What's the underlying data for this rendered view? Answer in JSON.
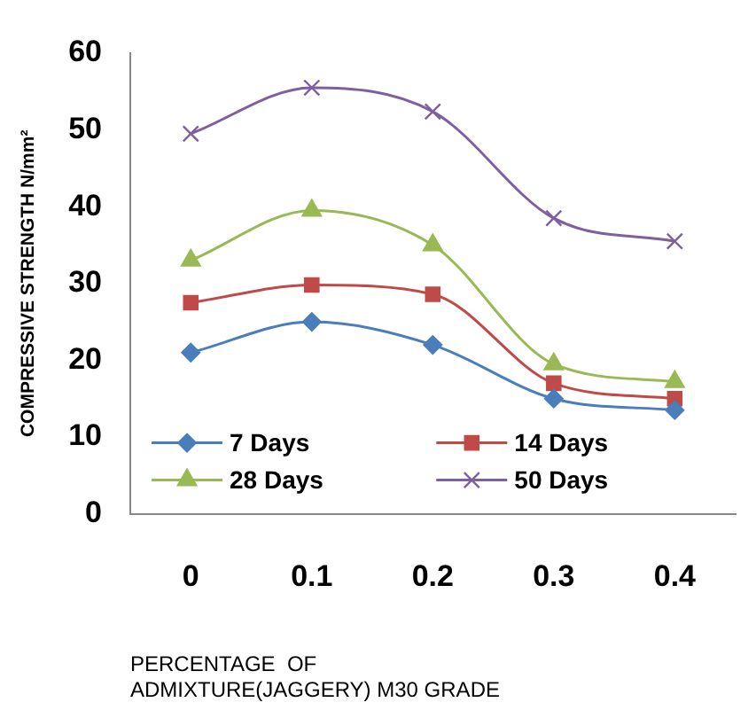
{
  "chart_data": {
    "type": "line",
    "xlabel": "PERCENTAGE  OF\nADMIXTURE(JAGGERY) M30 GRADE",
    "ylabel": "COMPRESSIVE STRENGTH N/mm²",
    "categories": [
      "0",
      "0.1",
      "0.2",
      "0.3",
      "0.4"
    ],
    "series": [
      {
        "name": "7 Days",
        "color": "#4a7ebb",
        "marker": "diamond",
        "values": [
          21,
          25,
          22,
          15,
          13.5
        ]
      },
      {
        "name": "14 Days",
        "color": "#be4b48",
        "marker": "square",
        "values": [
          27.5,
          29.8,
          28.6,
          17,
          15
        ]
      },
      {
        "name": "28 Days",
        "color": "#98b954",
        "marker": "triangle",
        "values": [
          33,
          39.5,
          35,
          19.5,
          17.2
        ]
      },
      {
        "name": "50 Days",
        "color": "#7d60a0",
        "marker": "cross",
        "values": [
          49.5,
          55.5,
          52.4,
          38.5,
          35.5
        ]
      }
    ],
    "ylim": [
      0,
      60
    ],
    "yticks": [
      0,
      10,
      20,
      30,
      40,
      50,
      60
    ],
    "grid": false,
    "legend": "bottom",
    "line_style": "solid"
  }
}
